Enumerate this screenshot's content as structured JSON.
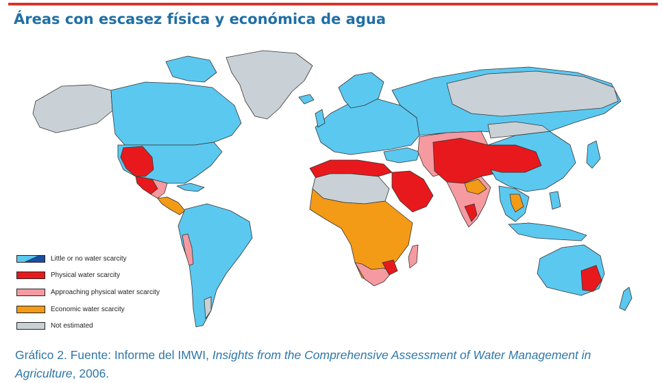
{
  "title": "Áreas con escasez física y económica de agua",
  "colors": {
    "accent_rule": "#d9342b",
    "title_text": "#1f6fa5",
    "caption_text": "#2e76a8",
    "little_or_no": "#5bc8f0",
    "physical": "#e8191c",
    "approaching": "#f59aa0",
    "economic": "#f39a17",
    "not_estimated": "#c9d1d6"
  },
  "legend": [
    {
      "label": "Little or no water scarcity",
      "color": "#5bc8f0",
      "pattern": "split"
    },
    {
      "label": "Physical water scarcity",
      "color": "#e8191c"
    },
    {
      "label": "Approaching physical water scarcity",
      "color": "#f59aa0"
    },
    {
      "label": "Economic water scarcity",
      "color": "#f39a17"
    },
    {
      "label": "Not estimated",
      "color": "#c9d1d6"
    }
  ],
  "caption": {
    "prefix": "Gráfico 2. Fuente: Informe del IMWI, ",
    "italic": "Insights from the Comprehensive Assessment of Water Management in Agriculture",
    "suffix": ", 2006."
  }
}
